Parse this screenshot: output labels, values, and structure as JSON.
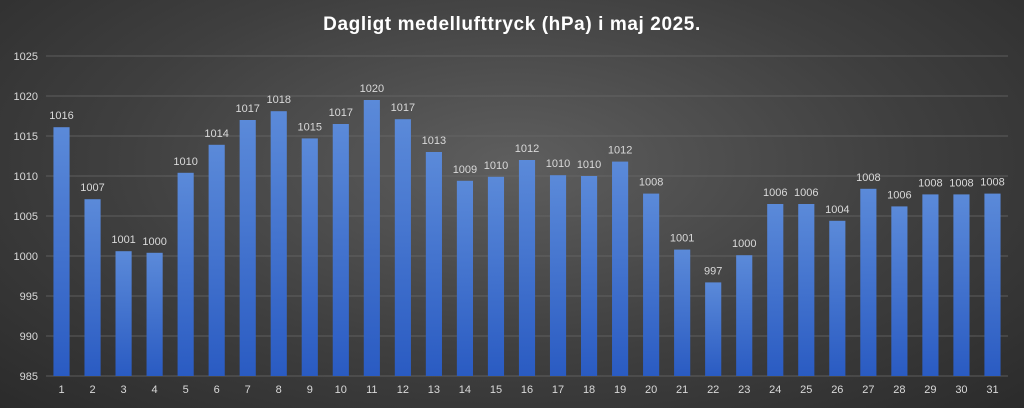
{
  "chart_data": {
    "type": "bar",
    "title": "Dagligt medellufttryck (hPa) i maj 2025.",
    "xlabel": "",
    "ylabel": "",
    "ylim": [
      985,
      1025
    ],
    "ytick_step": 5,
    "grid": true,
    "legend": "none",
    "categories": [
      "1",
      "2",
      "3",
      "4",
      "5",
      "6",
      "7",
      "8",
      "9",
      "10",
      "11",
      "12",
      "13",
      "14",
      "15",
      "16",
      "17",
      "18",
      "19",
      "20",
      "21",
      "22",
      "23",
      "24",
      "25",
      "26",
      "27",
      "28",
      "29",
      "30",
      "31"
    ],
    "values": [
      1016.1,
      1007.1,
      1000.6,
      1000.4,
      1010.4,
      1013.9,
      1017.0,
      1018.1,
      1014.7,
      1016.5,
      1019.5,
      1017.1,
      1013.0,
      1009.4,
      1009.9,
      1012.0,
      1010.1,
      1010.0,
      1011.8,
      1007.8,
      1000.8,
      996.7,
      1000.1,
      1006.5,
      1006.5,
      1004.4,
      1008.4,
      1006.2,
      1007.7,
      1007.7,
      1007.8
    ],
    "data_labels": [
      "1016",
      "1007",
      "1001",
      "1000",
      "1010",
      "1014",
      "1017",
      "1018",
      "1015",
      "1017",
      "1020",
      "1017",
      "1013",
      "1009",
      "1010",
      "1012",
      "1010",
      "1010",
      "1012",
      "1008",
      "1001",
      "997",
      "1000",
      "1006",
      "1006",
      "1004",
      "1008",
      "1006",
      "1008",
      "1008",
      "1008"
    ],
    "colors": {
      "bar_top": "#5b8ad9",
      "bar_bottom": "#2a5bc2"
    }
  }
}
